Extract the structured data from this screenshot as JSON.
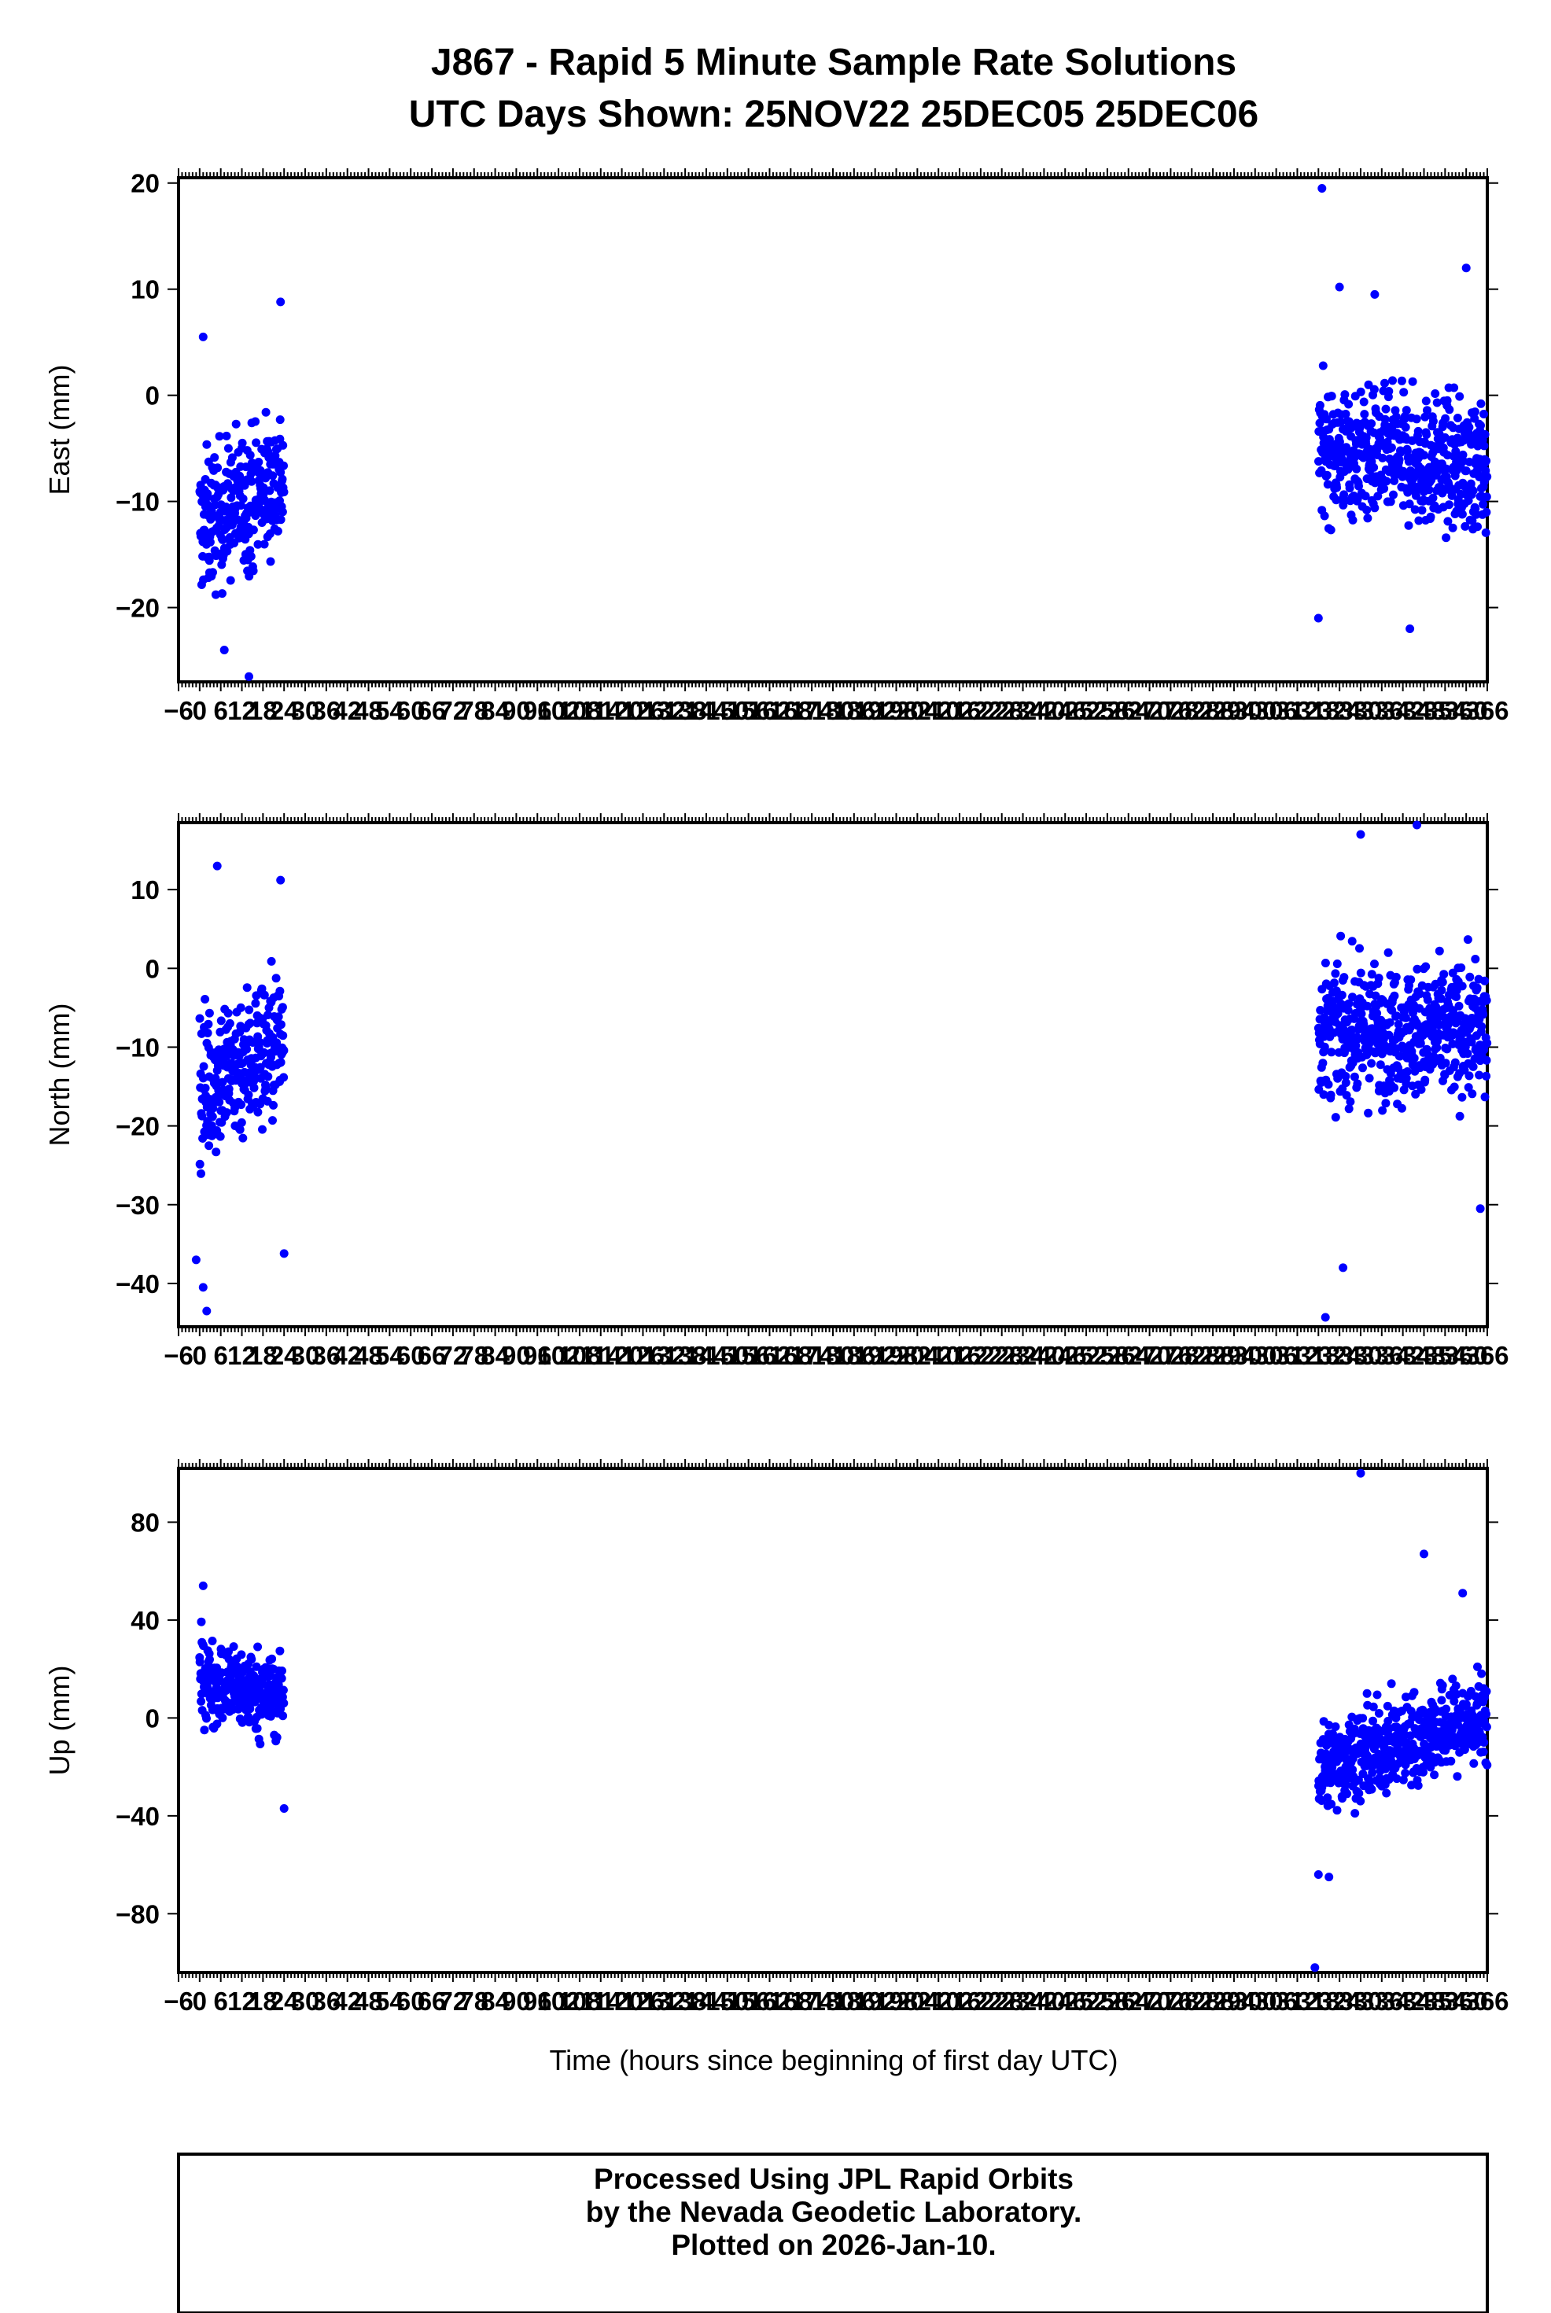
{
  "title_line1": "J867 - Rapid 5 Minute Sample Rate Solutions",
  "title_line2": "UTC Days Shown:  25NOV22 25DEC05 25DEC06",
  "xlabel": "Time (hours since beginning of first day UTC)",
  "footer": {
    "line1": "Processed Using JPL Rapid Orbits",
    "line2": "by the Nevada Geodetic Laboratory.",
    "line3": "Plotted on 2026-Jan-10."
  },
  "colors": {
    "points": "#0000ff",
    "axes": "#000000"
  },
  "chart_data": [
    {
      "type": "scatter",
      "ylabel": "East (mm)",
      "xlim": [
        -6,
        366
      ],
      "ylim": [
        -27,
        20.5
      ],
      "yticks": [
        20,
        10,
        0,
        -10,
        -20
      ],
      "xtick_step": 6,
      "series": [
        {
          "segments": [
            {
              "x_range": [
                0,
                24
              ],
              "center": -10,
              "spread": 5.5,
              "drift": 5
            },
            {
              "x_range": [
                318,
                366
              ],
              "center": -6,
              "spread": 5.0,
              "drift": -2
            }
          ],
          "points": [
            {
              "x": 1,
              "y": 5.5
            },
            {
              "x": 23,
              "y": 8.8
            },
            {
              "x": 14,
              "y": -26.5
            },
            {
              "x": 7,
              "y": -24
            },
            {
              "x": 319,
              "y": 19.5
            },
            {
              "x": 360,
              "y": 12
            },
            {
              "x": 324,
              "y": 10.2
            },
            {
              "x": 334,
              "y": 9.5
            },
            {
              "x": 344,
              "y": -22
            },
            {
              "x": 318,
              "y": -21
            }
          ]
        }
      ]
    },
    {
      "type": "scatter",
      "ylabel": "North (mm)",
      "xlim": [
        -6,
        366
      ],
      "ylim": [
        -45.5,
        18.5
      ],
      "yticks": [
        10,
        0,
        -10,
        -20,
        -30,
        -40
      ],
      "xtick_step": 6,
      "series": [
        {
          "segments": [
            {
              "x_range": [
                0,
                24
              ],
              "center": -12,
              "spread": 8,
              "drift": 6
            },
            {
              "x_range": [
                318,
                366
              ],
              "center": -8,
              "spread": 7,
              "drift": 0
            }
          ],
          "points": [
            {
              "x": 2,
              "y": -43.5
            },
            {
              "x": 1,
              "y": -40.5
            },
            {
              "x": -1,
              "y": -37
            },
            {
              "x": 5,
              "y": 13
            },
            {
              "x": 23,
              "y": 11.2
            },
            {
              "x": 24,
              "y": -36.2
            },
            {
              "x": 320,
              "y": -44.3
            },
            {
              "x": 325,
              "y": -38
            },
            {
              "x": 346,
              "y": 18.2
            },
            {
              "x": 330,
              "y": 17
            },
            {
              "x": 364,
              "y": -30.5
            }
          ]
        }
      ]
    },
    {
      "type": "scatter",
      "ylabel": "Up (mm)",
      "xlim": [
        -6,
        366
      ],
      "ylim": [
        -104,
        102
      ],
      "yticks": [
        80,
        40,
        0,
        -40,
        -80
      ],
      "xtick_step": 6,
      "series": [
        {
          "segments": [
            {
              "x_range": [
                0,
                24
              ],
              "center": 12,
              "spread": 14,
              "drift": -8
            },
            {
              "x_range": [
                318,
                366
              ],
              "center": -10,
              "spread": 15,
              "drift": 20
            }
          ],
          "points": [
            {
              "x": 330,
              "y": 100
            },
            {
              "x": 348,
              "y": 67
            },
            {
              "x": 317,
              "y": -102
            },
            {
              "x": 318,
              "y": -64
            },
            {
              "x": 321,
              "y": -65
            },
            {
              "x": 1,
              "y": 54
            },
            {
              "x": 24,
              "y": -37
            },
            {
              "x": 359,
              "y": 51
            }
          ]
        }
      ]
    }
  ]
}
